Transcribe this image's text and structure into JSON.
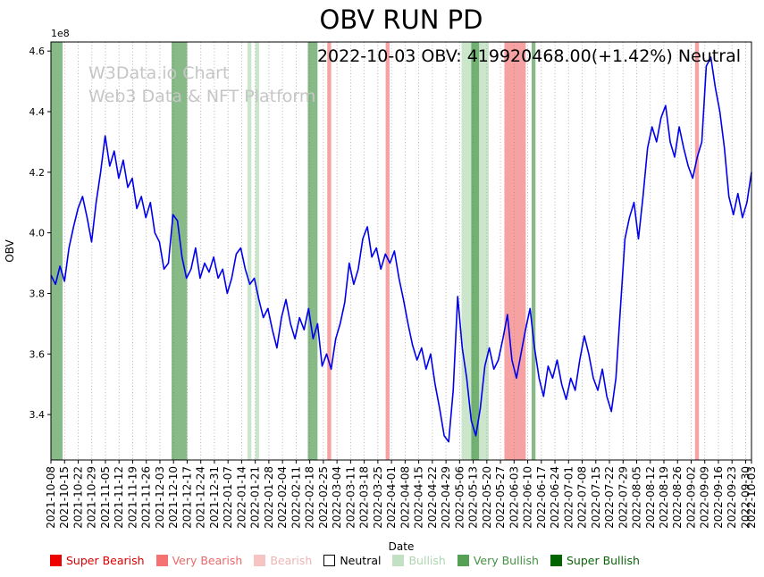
{
  "figure": {
    "title": "OBV RUN PD",
    "annotation": "2022-10-03 OBV: 419920468.00(+1.42%) Neutral",
    "watermark": [
      "W3Data.io Chart",
      "Web3 Data & NFT Platform"
    ]
  },
  "chart_data": {
    "type": "line",
    "title": "OBV RUN PD",
    "xlabel": "Date",
    "ylabel": "OBV",
    "y_scale_label": "1e8",
    "y_unit": 100000000,
    "ylim_e8": [
      3.25,
      4.63
    ],
    "y_ticks_e8": [
      3.4,
      3.6,
      3.8,
      4.0,
      4.2,
      4.4,
      4.6
    ],
    "grid": {
      "vertical": true,
      "style": "dotted",
      "color": "#a3a3a3"
    },
    "latest": {
      "date": "2022-10-03",
      "obv": 419920468.0,
      "change_pct": 1.42,
      "signal": "Neutral"
    },
    "x_tick_dates": [
      "2021-10-08",
      "2021-10-15",
      "2021-10-22",
      "2021-10-29",
      "2021-11-05",
      "2021-11-12",
      "2021-11-19",
      "2021-11-26",
      "2021-12-03",
      "2021-12-10",
      "2021-12-17",
      "2021-12-24",
      "2021-12-31",
      "2022-01-07",
      "2022-01-14",
      "2022-01-21",
      "2022-01-28",
      "2022-02-04",
      "2022-02-11",
      "2022-02-18",
      "2022-02-25",
      "2022-03-04",
      "2022-03-11",
      "2022-03-18",
      "2022-03-25",
      "2022-04-01",
      "2022-04-08",
      "2022-04-15",
      "2022-04-22",
      "2022-04-29",
      "2022-05-06",
      "2022-05-13",
      "2022-05-20",
      "2022-05-27",
      "2022-06-03",
      "2022-06-10",
      "2022-06-17",
      "2022-06-24",
      "2022-07-01",
      "2022-07-08",
      "2022-07-15",
      "2022-07-22",
      "2022-07-29",
      "2022-08-05",
      "2022-08-12",
      "2022-08-19",
      "2022-08-26",
      "2022-09-02",
      "2022-09-09",
      "2022-09-16",
      "2022-09-23",
      "2022-09-30",
      "2022-10-03"
    ],
    "series": [
      {
        "name": "OBV",
        "color": "#0000ee",
        "values_e8": [
          3.86,
          3.83,
          3.89,
          3.84,
          3.95,
          4.02,
          4.08,
          4.12,
          4.05,
          3.97,
          4.1,
          4.2,
          4.32,
          4.22,
          4.27,
          4.18,
          4.24,
          4.15,
          4.18,
          4.08,
          4.12,
          4.05,
          4.1,
          4.0,
          3.97,
          3.88,
          3.9,
          4.06,
          4.04,
          3.92,
          3.85,
          3.88,
          3.95,
          3.85,
          3.9,
          3.87,
          3.92,
          3.85,
          3.88,
          3.8,
          3.85,
          3.93,
          3.95,
          3.88,
          3.83,
          3.85,
          3.78,
          3.72,
          3.75,
          3.68,
          3.62,
          3.72,
          3.78,
          3.7,
          3.65,
          3.72,
          3.68,
          3.75,
          3.65,
          3.7,
          3.56,
          3.6,
          3.55,
          3.65,
          3.7,
          3.77,
          3.9,
          3.83,
          3.88,
          3.98,
          4.02,
          3.92,
          3.95,
          3.88,
          3.93,
          3.9,
          3.94,
          3.85,
          3.78,
          3.7,
          3.63,
          3.58,
          3.62,
          3.55,
          3.6,
          3.5,
          3.42,
          3.33,
          3.31,
          3.48,
          3.79,
          3.62,
          3.52,
          3.38,
          3.33,
          3.42,
          3.56,
          3.62,
          3.55,
          3.58,
          3.65,
          3.73,
          3.58,
          3.52,
          3.6,
          3.68,
          3.75,
          3.62,
          3.52,
          3.46,
          3.56,
          3.52,
          3.58,
          3.5,
          3.45,
          3.52,
          3.48,
          3.58,
          3.66,
          3.6,
          3.52,
          3.48,
          3.55,
          3.46,
          3.41,
          3.52,
          3.75,
          3.98,
          4.05,
          4.1,
          3.98,
          4.12,
          4.28,
          4.35,
          4.3,
          4.38,
          4.42,
          4.3,
          4.25,
          4.35,
          4.28,
          4.22,
          4.18,
          4.25,
          4.3,
          4.55,
          4.58,
          4.48,
          4.4,
          4.28,
          4.12,
          4.06,
          4.13,
          4.05,
          4.1,
          4.2
        ]
      }
    ],
    "bands": [
      {
        "from": "2021-10-08",
        "to": "2021-10-14",
        "level": "very_bullish"
      },
      {
        "from": "2021-12-09",
        "to": "2021-12-17",
        "level": "very_bullish"
      },
      {
        "from": "2022-01-17",
        "to": "2022-01-19",
        "level": "bullish"
      },
      {
        "from": "2022-01-21",
        "to": "2022-01-23",
        "level": "bullish"
      },
      {
        "from": "2022-02-17",
        "to": "2022-02-22",
        "level": "very_bullish"
      },
      {
        "from": "2022-02-27",
        "to": "2022-03-01",
        "level": "very_bearish"
      },
      {
        "from": "2022-03-29",
        "to": "2022-03-31",
        "level": "very_bearish"
      },
      {
        "from": "2022-05-07",
        "to": "2022-05-21",
        "level": "bullish"
      },
      {
        "from": "2022-05-12",
        "to": "2022-05-16",
        "level": "very_bullish"
      },
      {
        "from": "2022-05-29",
        "to": "2022-06-09",
        "level": "very_bearish"
      },
      {
        "from": "2022-06-12",
        "to": "2022-06-14",
        "level": "very_bullish"
      },
      {
        "from": "2022-09-04",
        "to": "2022-09-06",
        "level": "very_bearish"
      }
    ],
    "level_colors": {
      "super_bearish": "rgba(238,0,0,0.65)",
      "very_bearish": "rgba(240,85,85,0.55)",
      "bearish": "rgba(246,170,170,0.40)",
      "neutral": "rgba(255,255,255,0)",
      "bullish": "rgba(120,190,120,0.38)",
      "very_bullish": "rgba(55,140,55,0.60)",
      "super_bullish": "rgba(0,100,0,0.75)"
    },
    "legend": [
      {
        "label": "Super Bearish",
        "patch": "#ee0000",
        "text": "#dc0000"
      },
      {
        "label": "Very Bearish",
        "patch": "#f47272",
        "text": "#e96a6a"
      },
      {
        "label": "Bearish",
        "patch": "#f7c4c4",
        "text": "#efb4b4"
      },
      {
        "label": "Neutral",
        "patch": "#ffffff",
        "text": "#000000",
        "border": "#000000"
      },
      {
        "label": "Bullish",
        "patch": "#c2e0c2",
        "text": "#aed5ae"
      },
      {
        "label": "Very Bullish",
        "patch": "#55a055",
        "text": "#449044"
      },
      {
        "label": "Super Bullish",
        "patch": "#006400",
        "text": "#0a640a"
      }
    ]
  }
}
